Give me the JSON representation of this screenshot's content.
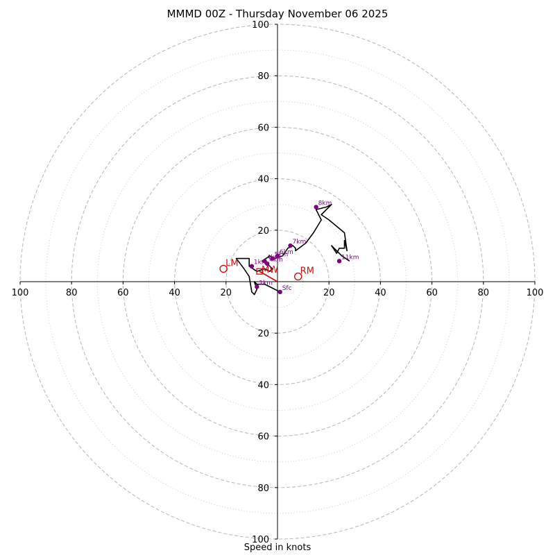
{
  "title": "MMMD 00Z - Thursday November 06 2025",
  "xlabel": "Speed in knots",
  "chart_data": {
    "type": "hodograph",
    "units": "knots",
    "range": [
      0,
      100
    ],
    "rings_major": [
      20,
      40,
      60,
      80,
      100
    ],
    "rings_minor": [
      10,
      30,
      50,
      70,
      90
    ],
    "x_tick_labels": [
      "100",
      "80",
      "60",
      "40",
      "20",
      "20",
      "40",
      "60",
      "80",
      "100"
    ],
    "y_tick_labels_up": [
      "20",
      "40",
      "60",
      "80",
      "100"
    ],
    "y_tick_labels_down": [
      "20",
      "40",
      "60",
      "80",
      "100"
    ],
    "trace": [
      [
        1,
        -4
      ],
      [
        -1,
        -3
      ],
      [
        -3,
        -2
      ],
      [
        -5,
        -1
      ],
      [
        -8,
        -1
      ],
      [
        -9,
        0
      ],
      [
        -8,
        -3
      ],
      [
        -9,
        -5
      ],
      [
        -10,
        -4
      ],
      [
        -11,
        2
      ],
      [
        -13,
        5
      ],
      [
        -16,
        9
      ],
      [
        -11,
        9
      ],
      [
        -11,
        6
      ],
      [
        -8,
        4
      ],
      [
        -5,
        5
      ],
      [
        -3,
        4
      ],
      [
        -2,
        5
      ],
      [
        -4,
        7
      ],
      [
        -6,
        8
      ],
      [
        -3,
        10
      ],
      [
        -1,
        9
      ],
      [
        2,
        10
      ],
      [
        4,
        13
      ],
      [
        6,
        14
      ],
      [
        7,
        13
      ],
      [
        7,
        12
      ],
      [
        11,
        15
      ],
      [
        14,
        19
      ],
      [
        17,
        24
      ],
      [
        15,
        28
      ],
      [
        19,
        29
      ],
      [
        21,
        30
      ],
      [
        17,
        26
      ],
      [
        20,
        24
      ],
      [
        26,
        19
      ],
      [
        27,
        12
      ],
      [
        26,
        16
      ],
      [
        26,
        13
      ],
      [
        24,
        13
      ],
      [
        23,
        11
      ],
      [
        21,
        14
      ],
      [
        23,
        12
      ],
      [
        25,
        10
      ],
      [
        28,
        8
      ]
    ],
    "markers": [
      {
        "label": "Sfc",
        "u": 1,
        "v": -4
      },
      {
        "label": "1km",
        "u": -8,
        "v": -2
      },
      {
        "label": "1km",
        "u": -10,
        "v": 6
      },
      {
        "label": "4km",
        "u": -5,
        "v": 8
      },
      {
        "label": "4km",
        "u": -4,
        "v": 7
      },
      {
        "label": "5km",
        "u": -2,
        "v": 9
      },
      {
        "label": "6km",
        "u": 0,
        "v": 10
      },
      {
        "label": "7km",
        "u": 5,
        "v": 14
      },
      {
        "label": "8km",
        "u": 15,
        "v": 29
      },
      {
        "label": "11km",
        "u": 24,
        "v": 8
      }
    ],
    "storm_motion": [
      {
        "label": "LM",
        "u": -21,
        "v": 5
      },
      {
        "label": "RM",
        "u": 8,
        "v": 2
      },
      {
        "label": "MW",
        "u": -7,
        "v": 4
      }
    ],
    "bunkers_vector": {
      "from": [
        -7,
        4
      ],
      "to": [
        0,
        0
      ]
    },
    "colors": {
      "trace": "#000000",
      "marker": "#800080",
      "storm_motion": "#cc1111",
      "grid": "#bbbbbb",
      "grid_minor": "#cccccc",
      "axis": "#000000"
    }
  }
}
